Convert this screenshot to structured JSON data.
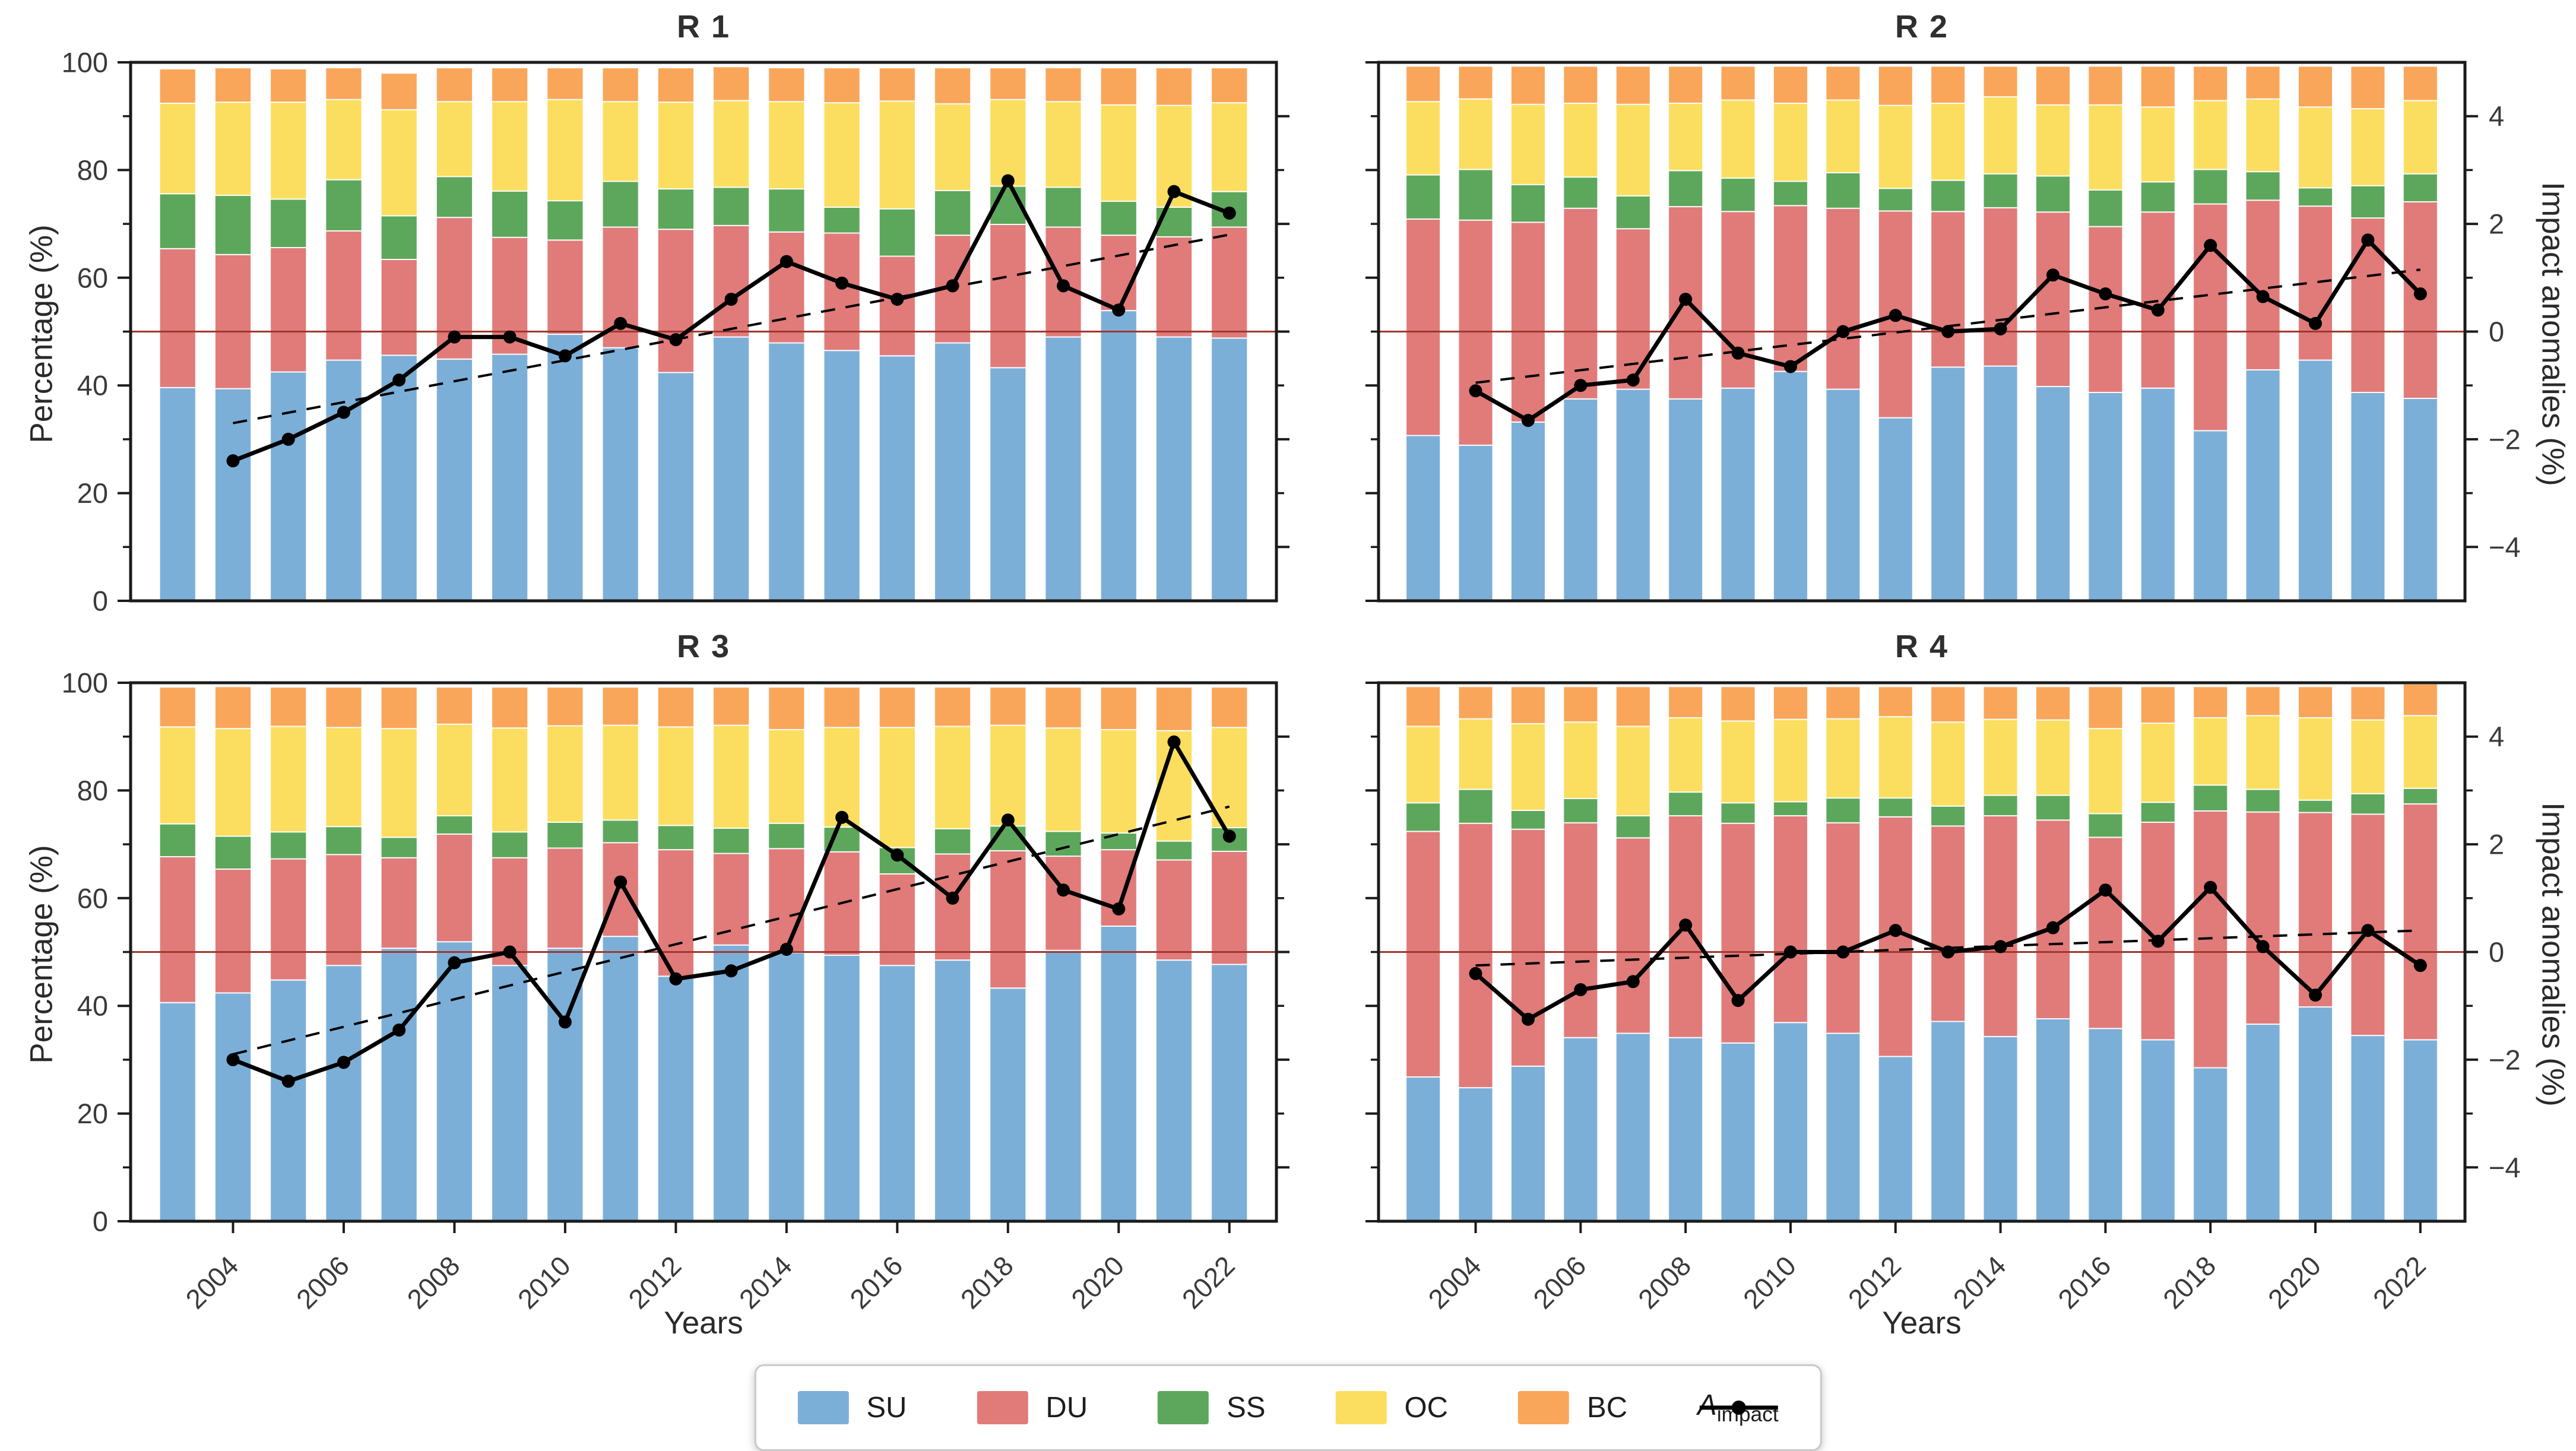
{
  "colors": {
    "SU": "#7BAFD8",
    "DU": "#E07B7A",
    "SS": "#5CA75C",
    "OC": "#FBDE60",
    "BC": "#F9A65A",
    "impact_line": "#000000",
    "trend_line": "#000000",
    "refline": "#A0372F",
    "spine": "#1b1b1b",
    "tick_text": "#3a3a3a"
  },
  "axes": {
    "ylabel_left": "Percentage (%)",
    "ylabel_right": "Impact anomalies (%)",
    "xlabel_left_panel": "Years",
    "xlabel_right_panel": "Years",
    "left_major_ticks": [
      0,
      20,
      40,
      60,
      80,
      100
    ],
    "left_minor_ticks": [
      10,
      30,
      50,
      70,
      90
    ],
    "right_major_ticks": [
      4,
      2,
      0,
      -2,
      -4
    ],
    "right_minor_ticks": [
      3,
      1,
      -1,
      -3
    ],
    "x_tick_years": [
      2004,
      2006,
      2008,
      2010,
      2012,
      2014,
      2016,
      2018,
      2020,
      2022
    ],
    "refline_right_value": 0
  },
  "legend": {
    "items": [
      {
        "key": "SU",
        "label": "SU",
        "type": "patch"
      },
      {
        "key": "DU",
        "label": "DU",
        "type": "patch"
      },
      {
        "key": "SS",
        "label": "SS",
        "type": "patch"
      },
      {
        "key": "OC",
        "label": "OC",
        "type": "patch"
      },
      {
        "key": "BC",
        "label": "BC",
        "type": "patch"
      },
      {
        "key": "impact",
        "label_main": "A",
        "label_sub": "impact",
        "type": "line-marker"
      }
    ]
  },
  "chart_data": [
    {
      "type": "bar",
      "stacked": true,
      "title": "R 1",
      "categories": [
        2003,
        2004,
        2005,
        2006,
        2007,
        2008,
        2009,
        2010,
        2011,
        2012,
        2013,
        2014,
        2015,
        2016,
        2017,
        2018,
        2019,
        2020,
        2021,
        2022
      ],
      "series": [
        {
          "name": "SU",
          "values": [
            39.6,
            39.4,
            42.5,
            44.7,
            45.6,
            44.9,
            45.8,
            49.5,
            47.0,
            42.4,
            49.0,
            47.9,
            46.5,
            45.5,
            47.9,
            43.3,
            49.0,
            53.9,
            49.0,
            48.8
          ]
        },
        {
          "name": "DU",
          "values": [
            25.8,
            24.9,
            23.1,
            24.0,
            17.8,
            26.3,
            21.7,
            17.5,
            22.4,
            26.6,
            20.7,
            20.6,
            21.8,
            18.5,
            20.0,
            26.6,
            20.4,
            14.0,
            18.6,
            20.6
          ]
        },
        {
          "name": "SS",
          "values": [
            10.2,
            11.0,
            9.0,
            9.5,
            8.1,
            7.6,
            8.6,
            7.3,
            8.5,
            7.5,
            7.1,
            8.0,
            4.8,
            8.8,
            8.3,
            7.1,
            7.4,
            6.3,
            5.5,
            6.6
          ]
        },
        {
          "name": "OC",
          "values": [
            16.8,
            17.3,
            18.0,
            14.9,
            19.7,
            13.9,
            16.6,
            18.8,
            14.8,
            16.1,
            16.1,
            16.2,
            19.4,
            20.0,
            16.1,
            16.1,
            15.9,
            17.9,
            18.9,
            16.5
          ]
        },
        {
          "name": "BC",
          "values": [
            6.4,
            6.4,
            6.2,
            5.9,
            6.8,
            6.3,
            6.3,
            5.9,
            6.3,
            6.4,
            6.3,
            6.3,
            6.5,
            6.2,
            6.7,
            5.9,
            6.3,
            6.9,
            7.0,
            6.5
          ]
        }
      ],
      "line": {
        "name": "A_impact",
        "years": [
          2004,
          2005,
          2006,
          2007,
          2008,
          2009,
          2010,
          2011,
          2012,
          2013,
          2014,
          2015,
          2016,
          2017,
          2018,
          2019,
          2020,
          2021,
          2022
        ],
        "values": [
          -2.4,
          -2.0,
          -1.5,
          -0.9,
          -0.1,
          -0.1,
          -0.45,
          0.15,
          -0.15,
          0.6,
          1.3,
          0.9,
          0.6,
          0.85,
          2.8,
          0.85,
          0.4,
          2.6,
          2.2
        ]
      },
      "trend": {
        "year_start": 2004,
        "year_end": 2022,
        "value_start": -1.7,
        "value_end": 1.8
      },
      "ylim_left": [
        0,
        100
      ],
      "ylim_right": [
        -5,
        5
      ]
    },
    {
      "type": "bar",
      "stacked": true,
      "title": "R 2",
      "categories": [
        2003,
        2004,
        2005,
        2006,
        2007,
        2008,
        2009,
        2010,
        2011,
        2012,
        2013,
        2014,
        2015,
        2016,
        2017,
        2018,
        2019,
        2020,
        2021,
        2022
      ],
      "series": [
        {
          "name": "SU",
          "values": [
            30.7,
            28.9,
            33.2,
            37.5,
            39.3,
            37.5,
            39.5,
            42.6,
            39.3,
            34.0,
            43.4,
            43.6,
            39.8,
            38.7,
            39.5,
            31.6,
            42.9,
            44.7,
            38.7,
            37.6
          ]
        },
        {
          "name": "DU",
          "values": [
            40.2,
            41.8,
            37.1,
            35.4,
            29.8,
            35.7,
            32.8,
            30.8,
            33.6,
            38.4,
            28.9,
            29.4,
            32.4,
            30.8,
            32.7,
            42.1,
            31.5,
            28.6,
            32.4,
            36.5
          ]
        },
        {
          "name": "SS",
          "values": [
            8.2,
            9.4,
            7.0,
            5.8,
            6.1,
            6.7,
            6.2,
            4.5,
            6.6,
            4.2,
            5.8,
            6.3,
            6.7,
            6.8,
            5.6,
            6.4,
            5.3,
            3.4,
            6.0,
            5.2
          ]
        },
        {
          "name": "OC",
          "values": [
            13.6,
            13.1,
            14.9,
            13.7,
            17.0,
            12.5,
            14.5,
            14.5,
            13.5,
            15.4,
            14.3,
            14.3,
            13.2,
            15.8,
            13.9,
            12.8,
            13.5,
            15.0,
            14.3,
            13.6
          ]
        },
        {
          "name": "BC",
          "values": [
            6.6,
            6.1,
            7.1,
            6.9,
            7.1,
            6.9,
            6.3,
            6.9,
            6.3,
            7.3,
            6.9,
            5.7,
            7.2,
            7.2,
            7.6,
            6.4,
            6.1,
            7.6,
            7.9,
            6.4
          ]
        }
      ],
      "line": {
        "name": "A_impact",
        "years": [
          2004,
          2005,
          2006,
          2007,
          2008,
          2009,
          2010,
          2011,
          2012,
          2013,
          2014,
          2015,
          2016,
          2017,
          2018,
          2019,
          2020,
          2021,
          2022
        ],
        "values": [
          -1.1,
          -1.65,
          -1.0,
          -0.9,
          0.6,
          -0.4,
          -0.65,
          0.0,
          0.3,
          0.0,
          0.05,
          1.05,
          0.7,
          0.4,
          1.6,
          0.65,
          0.15,
          1.7,
          0.7
        ]
      },
      "trend": {
        "year_start": 2004,
        "year_end": 2022,
        "value_start": -0.95,
        "value_end": 1.15
      },
      "ylim_left": [
        0,
        100
      ],
      "ylim_right": [
        -5,
        5
      ]
    },
    {
      "type": "bar",
      "stacked": true,
      "title": "R 3",
      "categories": [
        2003,
        2004,
        2005,
        2006,
        2007,
        2008,
        2009,
        2010,
        2011,
        2012,
        2013,
        2014,
        2015,
        2016,
        2017,
        2018,
        2019,
        2020,
        2021,
        2022
      ],
      "series": [
        {
          "name": "SU",
          "values": [
            40.6,
            42.4,
            44.8,
            47.5,
            50.7,
            51.9,
            47.5,
            50.7,
            52.9,
            45.5,
            51.3,
            49.9,
            49.4,
            47.5,
            48.5,
            43.3,
            50.3,
            54.8,
            48.5,
            47.7
          ]
        },
        {
          "name": "DU",
          "values": [
            27.1,
            23.0,
            22.5,
            20.6,
            16.8,
            20.0,
            20.0,
            18.6,
            17.4,
            23.5,
            17.0,
            19.3,
            19.2,
            17.0,
            19.7,
            25.5,
            17.5,
            14.2,
            18.6,
            21.0
          ]
        },
        {
          "name": "SS",
          "values": [
            6.1,
            6.1,
            5.0,
            5.2,
            3.8,
            3.4,
            4.8,
            4.8,
            4.2,
            4.5,
            4.7,
            4.7,
            4.6,
            4.9,
            4.7,
            4.6,
            4.6,
            3.1,
            3.5,
            4.4
          ]
        },
        {
          "name": "OC",
          "values": [
            18.0,
            20.0,
            19.6,
            18.4,
            20.2,
            17.0,
            19.3,
            17.9,
            17.6,
            18.3,
            19.1,
            17.4,
            18.5,
            22.3,
            19.0,
            18.7,
            19.2,
            19.2,
            20.5,
            18.6
          ]
        },
        {
          "name": "BC",
          "values": [
            7.4,
            7.8,
            7.3,
            7.5,
            7.7,
            6.9,
            7.6,
            7.2,
            7.1,
            7.4,
            7.1,
            7.9,
            7.5,
            7.5,
            7.3,
            7.1,
            7.6,
            7.9,
            8.1,
            7.5
          ]
        }
      ],
      "line": {
        "name": "A_impact",
        "years": [
          2004,
          2005,
          2006,
          2007,
          2008,
          2009,
          2010,
          2011,
          2012,
          2013,
          2014,
          2015,
          2016,
          2017,
          2018,
          2019,
          2020,
          2021,
          2022
        ],
        "values": [
          -2.0,
          -2.4,
          -2.05,
          -1.45,
          -0.2,
          0.0,
          -1.3,
          1.3,
          -0.5,
          -0.35,
          0.05,
          2.5,
          1.8,
          1.0,
          2.45,
          1.15,
          0.8,
          3.9,
          2.15
        ]
      },
      "trend": {
        "year_start": 2004,
        "year_end": 2022,
        "value_start": -1.9,
        "value_end": 2.7
      },
      "ylim_left": [
        0,
        100
      ],
      "ylim_right": [
        -5,
        5
      ]
    },
    {
      "type": "bar",
      "stacked": true,
      "title": "R 4",
      "categories": [
        2003,
        2004,
        2005,
        2006,
        2007,
        2008,
        2009,
        2010,
        2011,
        2012,
        2013,
        2014,
        2015,
        2016,
        2017,
        2018,
        2019,
        2020,
        2021,
        2022
      ],
      "series": [
        {
          "name": "SU",
          "values": [
            26.8,
            24.8,
            28.8,
            34.1,
            34.9,
            34.1,
            33.1,
            36.9,
            34.9,
            30.6,
            37.1,
            34.3,
            37.6,
            35.8,
            33.7,
            28.5,
            36.6,
            39.8,
            34.5,
            33.7
          ]
        },
        {
          "name": "DU",
          "values": [
            45.6,
            49.1,
            44.0,
            39.9,
            36.3,
            41.2,
            40.8,
            38.4,
            39.1,
            44.5,
            36.3,
            41.0,
            36.9,
            35.5,
            40.4,
            47.7,
            39.4,
            36.1,
            41.1,
            43.8
          ]
        },
        {
          "name": "SS",
          "values": [
            5.3,
            6.3,
            3.5,
            4.5,
            4.1,
            4.4,
            3.8,
            2.6,
            4.6,
            3.5,
            3.7,
            3.8,
            4.6,
            4.4,
            3.7,
            4.8,
            4.2,
            2.3,
            3.8,
            2.9
          ]
        },
        {
          "name": "OC",
          "values": [
            14.2,
            13.1,
            16.1,
            14.2,
            16.6,
            13.8,
            15.2,
            15.3,
            14.7,
            15.1,
            15.6,
            14.1,
            14.0,
            15.8,
            14.7,
            12.5,
            13.7,
            15.3,
            13.7,
            13.5
          ]
        },
        {
          "name": "BC",
          "values": [
            7.4,
            6.0,
            6.9,
            6.6,
            7.4,
            5.8,
            6.4,
            6.1,
            6.0,
            5.6,
            6.6,
            6.1,
            6.2,
            7.8,
            6.8,
            5.8,
            5.4,
            5.8,
            6.2,
            5.9
          ]
        }
      ],
      "line": {
        "name": "A_impact",
        "years": [
          2004,
          2005,
          2006,
          2007,
          2008,
          2009,
          2010,
          2011,
          2012,
          2013,
          2014,
          2015,
          2016,
          2017,
          2018,
          2019,
          2020,
          2021,
          2022
        ],
        "values": [
          -0.4,
          -1.25,
          -0.7,
          -0.55,
          0.5,
          -0.9,
          0.0,
          0.0,
          0.4,
          0.0,
          0.1,
          0.45,
          1.15,
          0.2,
          1.2,
          0.1,
          -0.8,
          0.4,
          -0.25
        ]
      },
      "trend": {
        "year_start": 2004,
        "year_end": 2022,
        "value_start": -0.25,
        "value_end": 0.4
      },
      "ylim_left": [
        0,
        100
      ],
      "ylim_right": [
        -5,
        5
      ]
    }
  ]
}
